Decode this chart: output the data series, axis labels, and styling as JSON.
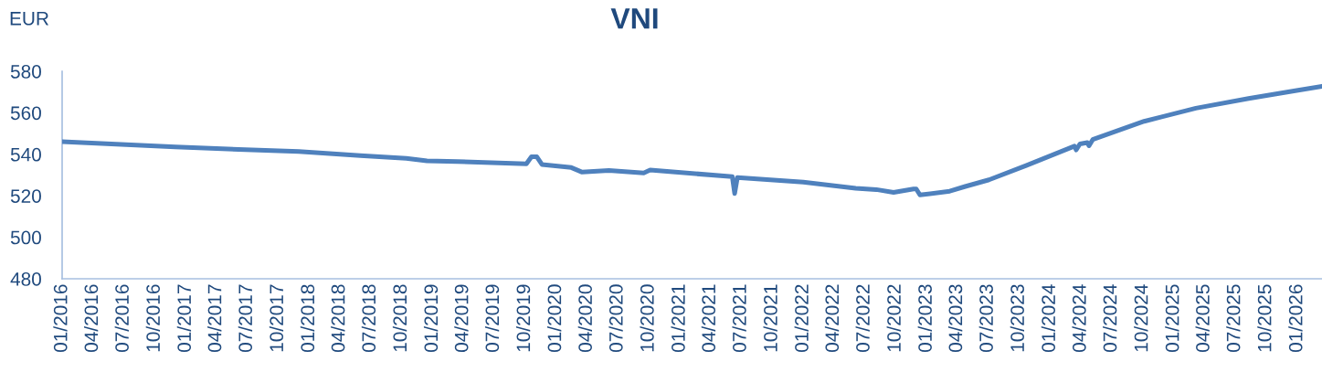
{
  "chart_data": {
    "type": "line",
    "title": "VNI",
    "ylabel": "EUR",
    "x": [
      "2016-01-01",
      "2016-12-01",
      "2017-12-01",
      "2018-06-01",
      "2018-10-15",
      "2018-12-15",
      "2019-03-15",
      "2019-10-05",
      "2019-10-20",
      "2019-11-05",
      "2019-11-20",
      "2020-02-15",
      "2020-03-18",
      "2020-06-05",
      "2020-09-16",
      "2020-10-05",
      "2021-06-05",
      "2021-06-12",
      "2021-06-20",
      "2022-01-01",
      "2022-06-05",
      "2022-08-05",
      "2022-09-25",
      "2022-11-23",
      "2022-12-01",
      "2022-12-12",
      "2023-03-10",
      "2023-04-25",
      "2023-07-04",
      "2023-10-22",
      "2024-03-13",
      "2024-03-18",
      "2024-03-29",
      "2024-04-20",
      "2024-04-25",
      "2024-05-06",
      "2024-10-05",
      "2025-03-07",
      "2025-08-10",
      "2025-12-26",
      "2026-03-15"
    ],
    "series": [
      {
        "color": "#4f81bd",
        "values": [
          546.1,
          543.5,
          541.3,
          539.4,
          538.0,
          536.8,
          536.5,
          535.4,
          538.8,
          538.8,
          535.1,
          533.6,
          531.4,
          532.2,
          531.0,
          532.4,
          529.2,
          521.1,
          528.8,
          526.6,
          523.6,
          523.0,
          521.6,
          523.3,
          523.3,
          520.4,
          522.2,
          524.5,
          527.7,
          534.6,
          543.9,
          542.1,
          545.0,
          545.6,
          544.1,
          547.1,
          555.9,
          562.2,
          566.9,
          570.6,
          572.8
        ]
      }
    ],
    "xlim": [
      "2016-01-01",
      "2026-03-15"
    ],
    "ylim": [
      480,
      580
    ],
    "yticks": [
      480,
      500,
      520,
      540,
      560,
      580
    ],
    "xticks": [
      {
        "value": "2016-01",
        "label": "01/2016"
      },
      {
        "value": "2016-04",
        "label": "04/2016"
      },
      {
        "value": "2016-07",
        "label": "07/2016"
      },
      {
        "value": "2016-10",
        "label": "10/2016"
      },
      {
        "value": "2017-01",
        "label": "01/2017"
      },
      {
        "value": "2017-04",
        "label": "04/2017"
      },
      {
        "value": "2017-07",
        "label": "07/2017"
      },
      {
        "value": "2017-10",
        "label": "10/2017"
      },
      {
        "value": "2018-01",
        "label": "01/2018"
      },
      {
        "value": "2018-04",
        "label": "04/2018"
      },
      {
        "value": "2018-07",
        "label": "07/2018"
      },
      {
        "value": "2018-10",
        "label": "10/2018"
      },
      {
        "value": "2019-01",
        "label": "01/2019"
      },
      {
        "value": "2019-04",
        "label": "04/2019"
      },
      {
        "value": "2019-07",
        "label": "07/2019"
      },
      {
        "value": "2019-10",
        "label": "10/2019"
      },
      {
        "value": "2020-01",
        "label": "01/2020"
      },
      {
        "value": "2020-04",
        "label": "04/2020"
      },
      {
        "value": "2020-07",
        "label": "07/2020"
      },
      {
        "value": "2020-10",
        "label": "10/2020"
      },
      {
        "value": "2021-01",
        "label": "01/2021"
      },
      {
        "value": "2021-04",
        "label": "04/2021"
      },
      {
        "value": "2021-07",
        "label": "07/2021"
      },
      {
        "value": "2021-10",
        "label": "10/2021"
      },
      {
        "value": "2022-01",
        "label": "01/2022"
      },
      {
        "value": "2022-04",
        "label": "04/2022"
      },
      {
        "value": "2022-07",
        "label": "07/2022"
      },
      {
        "value": "2022-10",
        "label": "10/2022"
      },
      {
        "value": "2023-01",
        "label": "01/2023"
      },
      {
        "value": "2023-04",
        "label": "04/2023"
      },
      {
        "value": "2023-07",
        "label": "07/2023"
      },
      {
        "value": "2023-10",
        "label": "10/2023"
      },
      {
        "value": "2024-01",
        "label": "01/2024"
      },
      {
        "value": "2024-04",
        "label": "04/2024"
      },
      {
        "value": "2024-07",
        "label": "07/2024"
      },
      {
        "value": "2024-10",
        "label": "10/2024"
      },
      {
        "value": "2025-01",
        "label": "01/2025"
      },
      {
        "value": "2025-04",
        "label": "04/2025"
      },
      {
        "value": "2025-07",
        "label": "07/2025"
      },
      {
        "value": "2025-10",
        "label": "10/2025"
      },
      {
        "value": "2026-01",
        "label": "01/2026"
      }
    ],
    "grid": false,
    "legend": false,
    "marker": "none",
    "line_style": "solid"
  }
}
